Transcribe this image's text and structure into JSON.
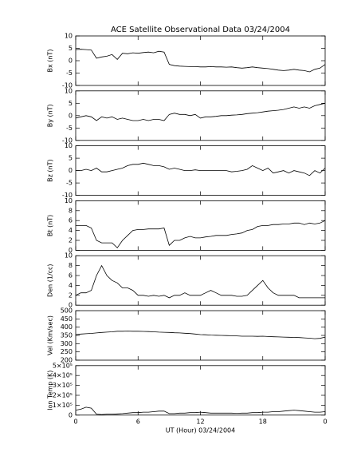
{
  "chart_data": [
    {
      "type": "line",
      "title": "ACE Satellite Observational Data  03/24/2004",
      "ylabel": "Bx (nT)",
      "color": "#000000",
      "x": [
        0,
        0.5,
        1,
        1.5,
        2,
        2.5,
        3,
        3.5,
        4,
        4.5,
        5,
        5.5,
        6,
        6.5,
        7,
        7.5,
        8,
        8.5,
        9,
        9.5,
        10,
        10.5,
        11,
        11.5,
        12,
        12.5,
        13,
        13.5,
        14,
        14.5,
        15,
        15.5,
        16,
        16.5,
        17,
        17.5,
        18,
        18.5,
        19,
        19.5,
        20,
        20.5,
        21,
        21.5,
        22,
        22.5,
        23,
        23.5,
        24
      ],
      "values": [
        4.5,
        4.6,
        4.5,
        4.3,
        1,
        1.5,
        1.8,
        2.5,
        0.5,
        3,
        2.8,
        3.2,
        3,
        3.3,
        3.5,
        3.2,
        3.8,
        3.5,
        -1.5,
        -2,
        -2.2,
        -2.3,
        -2.4,
        -2.4,
        -2.5,
        -2.5,
        -2.4,
        -2.5,
        -2.5,
        -2.6,
        -2.5,
        -2.8,
        -3,
        -2.8,
        -2.5,
        -2.8,
        -3,
        -3.2,
        -3.5,
        -3.8,
        -4,
        -3.8,
        -3.5,
        -3.8,
        -4,
        -4.5,
        -3.5,
        -3,
        -1.5
      ],
      "xlim": [
        0,
        24
      ],
      "ylim": [
        -10,
        10
      ],
      "yticks": [
        -10,
        -5,
        0,
        5,
        10
      ]
    },
    {
      "type": "line",
      "ylabel": "By (nT)",
      "color": "#000000",
      "x": [
        0,
        0.5,
        1,
        1.5,
        2,
        2.5,
        3,
        3.5,
        4,
        4.5,
        5,
        5.5,
        6,
        6.5,
        7,
        7.5,
        8,
        8.5,
        9,
        9.5,
        10,
        10.5,
        11,
        11.5,
        12,
        12.5,
        13,
        13.5,
        14,
        14.5,
        15,
        15.5,
        16,
        16.5,
        17,
        17.5,
        18,
        18.5,
        19,
        19.5,
        20,
        20.5,
        21,
        21.5,
        22,
        22.5,
        23,
        23.5,
        24
      ],
      "values": [
        -1,
        -0.5,
        0,
        -0.5,
        -2,
        -0.5,
        -1,
        -0.5,
        -1.5,
        -1,
        -1.5,
        -2,
        -2,
        -1.5,
        -2,
        -1.5,
        -1.5,
        -2,
        0.5,
        1,
        0.5,
        0.5,
        0,
        0.5,
        -1,
        -0.5,
        -0.5,
        -0.3,
        0,
        0,
        0.2,
        0.3,
        0.5,
        0.8,
        1,
        1.2,
        1.5,
        1.8,
        2,
        2.2,
        2.5,
        3,
        3.5,
        3,
        3.5,
        3,
        4,
        4.5,
        5
      ],
      "xlim": [
        0,
        24
      ],
      "ylim": [
        -10,
        10
      ],
      "yticks": [
        -10,
        -5,
        0,
        5,
        10
      ]
    },
    {
      "type": "line",
      "ylabel": "Bz (nT)",
      "color": "#000000",
      "x": [
        0,
        0.5,
        1,
        1.5,
        2,
        2.5,
        3,
        3.5,
        4,
        4.5,
        5,
        5.5,
        6,
        6.5,
        7,
        7.5,
        8,
        8.5,
        9,
        9.5,
        10,
        10.5,
        11,
        11.5,
        12,
        12.5,
        13,
        13.5,
        14,
        14.5,
        15,
        15.5,
        16,
        16.5,
        17,
        17.5,
        18,
        18.5,
        19,
        19.5,
        20,
        20.5,
        21,
        21.5,
        22,
        22.5,
        23,
        23.5,
        24
      ],
      "values": [
        0,
        0,
        0.5,
        0,
        1,
        -0.5,
        -0.5,
        0,
        0.5,
        1,
        2,
        2.5,
        2.5,
        3,
        2.5,
        2,
        2,
        1.5,
        0.5,
        1,
        0.5,
        0,
        0,
        0.3,
        0,
        0,
        0,
        0,
        0,
        0,
        -0.5,
        -0.3,
        0,
        0.5,
        2,
        1,
        0,
        1,
        -1,
        -0.5,
        0,
        -1,
        0,
        -0.5,
        -1,
        -2,
        0,
        -1,
        1
      ],
      "xlim": [
        0,
        24
      ],
      "ylim": [
        -10,
        10
      ],
      "yticks": [
        -10,
        -5,
        0,
        5,
        10
      ]
    },
    {
      "type": "line",
      "ylabel": "Bt (nT)",
      "color": "#000000",
      "x": [
        0,
        0.5,
        1,
        1.5,
        2,
        2.5,
        3,
        3.5,
        4,
        4.5,
        5,
        5.5,
        6,
        6.5,
        7,
        7.5,
        8,
        8.5,
        9,
        9.5,
        10,
        10.5,
        11,
        11.5,
        12,
        12.5,
        13,
        13.5,
        14,
        14.5,
        15,
        15.5,
        16,
        16.5,
        17,
        17.5,
        18,
        18.5,
        19,
        19.5,
        20,
        20.5,
        21,
        21.5,
        22,
        22.5,
        23,
        23.5,
        24
      ],
      "values": [
        5,
        5,
        5,
        4.5,
        2,
        1.5,
        1.5,
        1.5,
        0.5,
        2,
        3,
        4,
        4.2,
        4.2,
        4.3,
        4.3,
        4.3,
        4.5,
        1,
        2,
        2,
        2.5,
        2.8,
        2.5,
        2.5,
        2.7,
        2.8,
        3,
        3,
        3,
        3.2,
        3.3,
        3.5,
        4,
        4.2,
        4.8,
        5,
        5,
        5.2,
        5.2,
        5.3,
        5.3,
        5.5,
        5.5,
        5.2,
        5.5,
        5.3,
        5.5,
        6
      ],
      "xlim": [
        0,
        24
      ],
      "ylim": [
        0,
        10
      ],
      "yticks": [
        0,
        2,
        4,
        6,
        8,
        10
      ]
    },
    {
      "type": "line",
      "ylabel": "Den (1/cc)",
      "color": "#000000",
      "x": [
        0,
        0.5,
        1,
        1.5,
        2,
        2.5,
        3,
        3.5,
        4,
        4.5,
        5,
        5.5,
        6,
        6.5,
        7,
        7.5,
        8,
        8.5,
        9,
        9.5,
        10,
        10.5,
        11,
        11.5,
        12,
        12.5,
        13,
        13.5,
        14,
        14.5,
        15,
        15.5,
        16,
        16.5,
        17,
        17.5,
        18,
        18.5,
        19,
        19.5,
        20,
        20.5,
        21,
        21.5,
        22,
        22.5,
        23,
        23.5,
        24
      ],
      "values": [
        2,
        2.5,
        2.5,
        3,
        6,
        8,
        6,
        5,
        4.5,
        3.5,
        3.5,
        3,
        2,
        2,
        1.8,
        2,
        1.8,
        2,
        1.5,
        2,
        2,
        2.5,
        2,
        2,
        2,
        2.5,
        3,
        2.5,
        2,
        2,
        2,
        1.8,
        1.8,
        2,
        3,
        4,
        5,
        3.5,
        2.5,
        2,
        2,
        2,
        2,
        1.5,
        1.5,
        1.5,
        1.5,
        1.5,
        1.5
      ],
      "xlim": [
        0,
        24
      ],
      "ylim": [
        0,
        10
      ],
      "yticks": [
        0,
        2,
        4,
        6,
        8,
        10
      ]
    },
    {
      "type": "line",
      "ylabel": "Vel (Km/sec)",
      "color": "#000000",
      "x": [
        0,
        0.5,
        1,
        1.5,
        2,
        2.5,
        3,
        3.5,
        4,
        4.5,
        5,
        5.5,
        6,
        6.5,
        7,
        7.5,
        8,
        8.5,
        9,
        9.5,
        10,
        10.5,
        11,
        11.5,
        12,
        12.5,
        13,
        13.5,
        14,
        14.5,
        15,
        15.5,
        16,
        16.5,
        17,
        17.5,
        18,
        18.5,
        19,
        19.5,
        20,
        20.5,
        21,
        21.5,
        22,
        22.5,
        23,
        23.5,
        24
      ],
      "values": [
        355,
        358,
        360,
        362,
        365,
        368,
        370,
        372,
        375,
        375,
        376,
        375,
        375,
        374,
        373,
        372,
        370,
        369,
        368,
        366,
        365,
        363,
        361,
        358,
        355,
        354,
        352,
        351,
        350,
        349,
        348,
        347,
        345,
        345,
        345,
        344,
        345,
        343,
        342,
        341,
        340,
        339,
        338,
        337,
        335,
        333,
        330,
        332,
        340
      ],
      "xlim": [
        0,
        24
      ],
      "ylim": [
        200,
        500
      ],
      "yticks": [
        200,
        250,
        300,
        350,
        400,
        450,
        500
      ]
    },
    {
      "type": "line",
      "ylabel": "Ion Temp (K)",
      "color": "#000000",
      "x": [
        0,
        0.5,
        1,
        1.5,
        2,
        2.5,
        3,
        3.5,
        4,
        4.5,
        5,
        5.5,
        6,
        6.5,
        7,
        7.5,
        8,
        8.5,
        9,
        9.5,
        10,
        10.5,
        11,
        11.5,
        12,
        12.5,
        13,
        13.5,
        14,
        14.5,
        15,
        15.5,
        16,
        16.5,
        17,
        17.5,
        18,
        18.5,
        19,
        19.5,
        20,
        20.5,
        21,
        21.5,
        22,
        22.5,
        23,
        23.5,
        24
      ],
      "values": [
        50000,
        60000,
        80000,
        70000,
        10000,
        5000,
        10000,
        10000,
        12000,
        15000,
        20000,
        25000,
        25000,
        30000,
        30000,
        35000,
        40000,
        40000,
        15000,
        15000,
        20000,
        20000,
        25000,
        25000,
        30000,
        25000,
        20000,
        20000,
        20000,
        20000,
        20000,
        18000,
        20000,
        20000,
        25000,
        25000,
        30000,
        30000,
        35000,
        35000,
        40000,
        45000,
        50000,
        45000,
        40000,
        35000,
        30000,
        30000,
        35000
      ],
      "xlim": [
        0,
        24
      ],
      "ylim": [
        0,
        500000
      ],
      "yticks": [
        {
          "value": 0,
          "label": "0"
        },
        {
          "value": 100000,
          "label": "1×10⁵"
        },
        {
          "value": 200000,
          "label": "2×10⁵"
        },
        {
          "value": 300000,
          "label": "3×10⁵"
        },
        {
          "value": 400000,
          "label": "4×10⁵"
        },
        {
          "value": 500000,
          "label": "5×10⁵"
        }
      ],
      "xticks": [
        0,
        6,
        12,
        18,
        {
          "value": 24,
          "label": "0"
        }
      ],
      "xlabel": "UT (Hour)  03/24/2004"
    }
  ]
}
